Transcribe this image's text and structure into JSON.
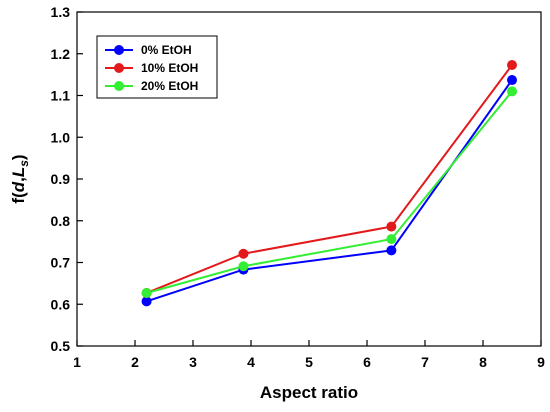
{
  "chart_data": {
    "type": "line",
    "title": "",
    "xlabel": "Aspect ratio",
    "ylabel": {
      "prefix": "f(",
      "d": "d",
      "comma": ",",
      "L": "L",
      "sub": "s",
      "suffix": ")"
    },
    "xlim": [
      1,
      9
    ],
    "ylim": [
      0.5,
      1.3
    ],
    "xticks": [
      1,
      2,
      3,
      4,
      5,
      6,
      7,
      8,
      9
    ],
    "yticks": [
      0.5,
      0.6,
      0.7,
      0.8,
      0.9,
      1.0,
      1.1,
      1.2,
      1.3
    ],
    "ytick_labels": [
      "0.5",
      "0.6",
      "0.7",
      "0.8",
      "0.9",
      "1.0",
      "1.1",
      "1.2",
      "1.3"
    ],
    "grid": false,
    "legend_position": "top-left",
    "series": [
      {
        "name": "0% EtOH",
        "color": "#0000ff",
        "x": [
          2.2,
          3.87,
          6.42,
          8.5
        ],
        "y": [
          0.607,
          0.683,
          0.729,
          1.137
        ]
      },
      {
        "name": "10% EtOH",
        "color": "#e31a1c",
        "x": [
          2.2,
          3.87,
          6.42,
          8.5
        ],
        "y": [
          0.627,
          0.721,
          0.786,
          1.173
        ]
      },
      {
        "name": "20% EtOH",
        "color": "#33ee33",
        "x": [
          2.2,
          3.87,
          6.42,
          8.5
        ],
        "y": [
          0.627,
          0.691,
          0.756,
          1.11
        ]
      }
    ]
  }
}
